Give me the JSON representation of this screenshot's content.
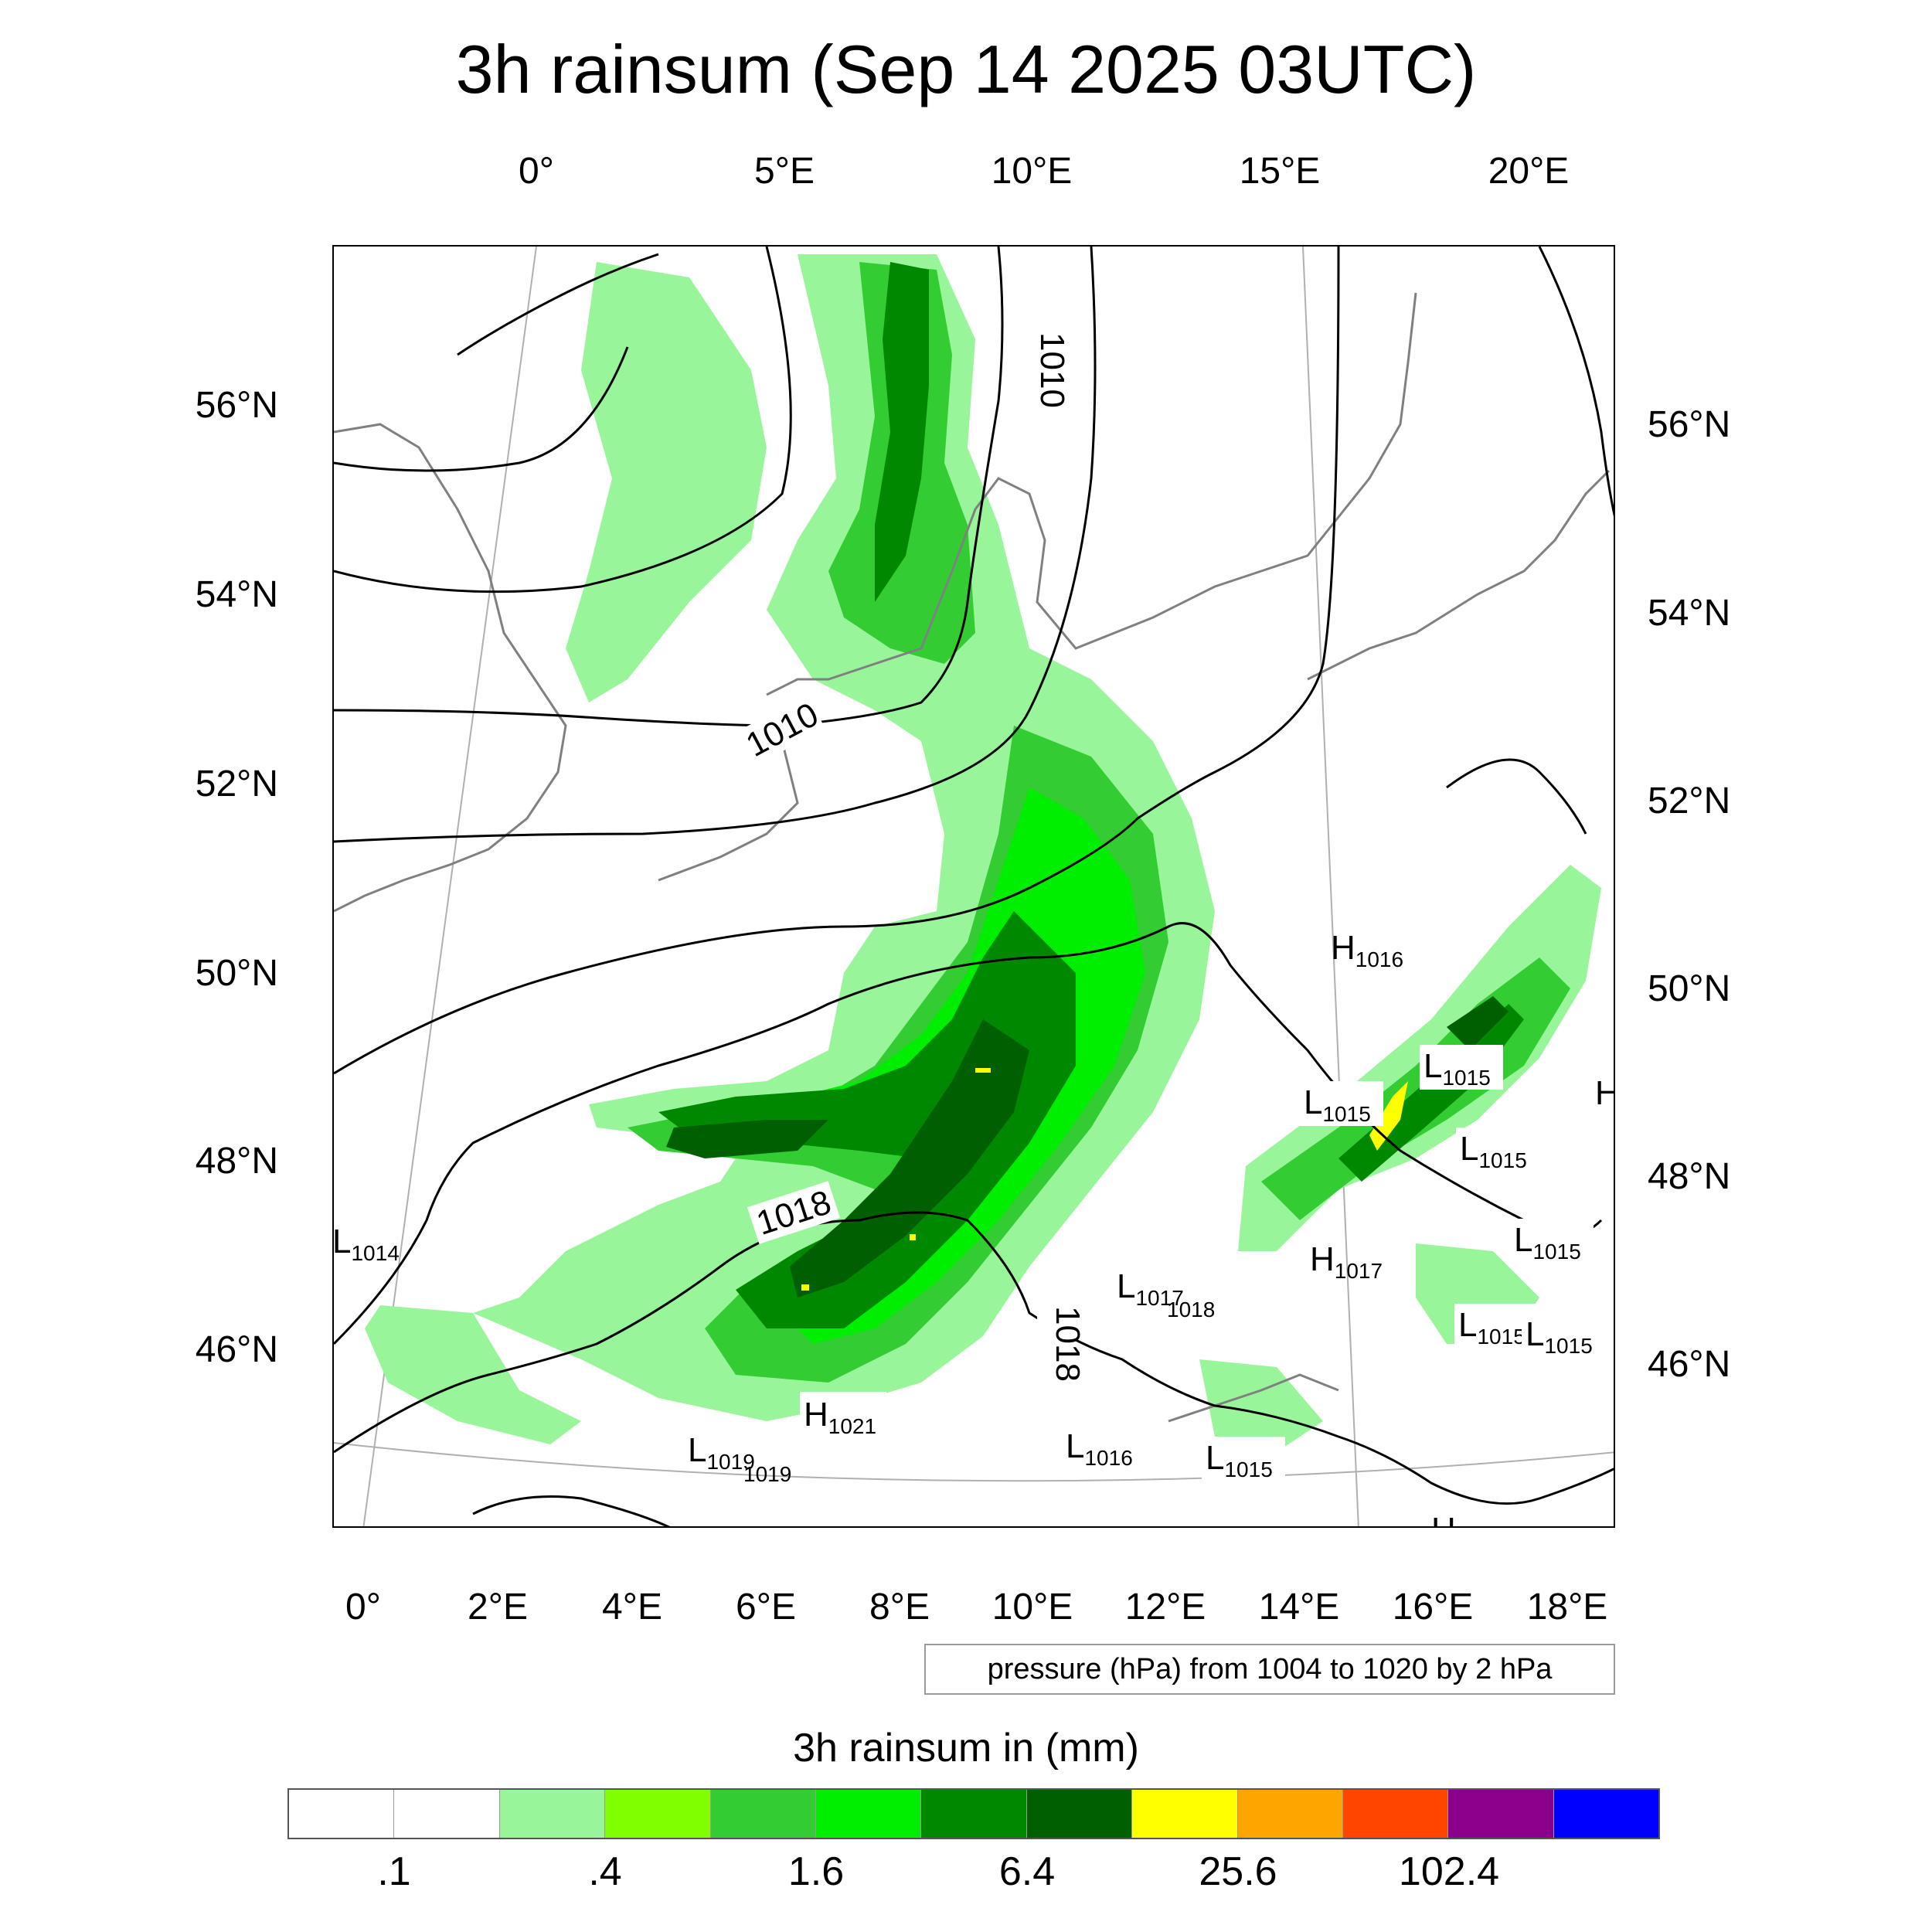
{
  "title": "3h rainsum (Sep 14 2025 03UTC)",
  "top_lon_labels": [
    "0°",
    "5°E",
    "10°E",
    "15°E",
    "20°E"
  ],
  "bottom_lon_labels": [
    "0°",
    "2°E",
    "4°E",
    "6°E",
    "8°E",
    "10°E",
    "12°E",
    "14°E",
    "16°E",
    "18°E"
  ],
  "left_lat_labels": [
    "56°N",
    "54°N",
    "52°N",
    "50°N",
    "48°N",
    "46°N"
  ],
  "right_lat_labels": [
    "56°N",
    "54°N",
    "52°N",
    "50°N",
    "48°N",
    "46°N"
  ],
  "isobar_labels": [
    "1010",
    "1010",
    "1018",
    "1018"
  ],
  "pressure_centers": [
    {
      "type": "H",
      "value": "1016"
    },
    {
      "type": "L",
      "value": "1015"
    },
    {
      "type": "L",
      "value": "1015"
    },
    {
      "type": "L",
      "value": "1015"
    },
    {
      "type": "L",
      "value": "1015"
    },
    {
      "type": "L",
      "value": "1015"
    },
    {
      "type": "L",
      "value": "1015"
    },
    {
      "type": "H",
      "value": "1017"
    },
    {
      "type": "L",
      "value": "1017"
    },
    {
      "type": "",
      "value": "1018"
    },
    {
      "type": "L",
      "value": "1014"
    },
    {
      "type": "H",
      "value": "1021"
    },
    {
      "type": "L",
      "value": "1019"
    },
    {
      "type": "",
      "value": "1019"
    },
    {
      "type": "L",
      "value": "1016"
    },
    {
      "type": "L",
      "value": "1015"
    },
    {
      "type": "H",
      "value": ""
    },
    {
      "type": "H",
      "value": ""
    }
  ],
  "pressure_note": "pressure (hPa) from 1004 to 1020 by 2 hPa",
  "colorbar": {
    "title": "3h rainsum in (mm)",
    "colors": [
      "#ffffff",
      "#ffffff",
      "#99f599",
      "#80ff00",
      "#33cc33",
      "#00ee00",
      "#008800",
      "#005f00",
      "#ffff00",
      "#ffa500",
      "#ff4500",
      "#8b008b",
      "#0000ff"
    ],
    "tick_labels": [
      ".1",
      ".4",
      "1.6",
      "6.4",
      "25.6",
      "102.4"
    ]
  },
  "colors": {
    "coastline": "#808080",
    "isobar": "#000000",
    "graticule": "#b0b0b0"
  }
}
